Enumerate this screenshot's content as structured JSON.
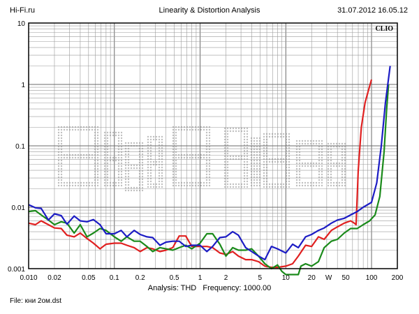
{
  "header": {
    "site": "Hi-Fi.ru",
    "title": "Linearity & Distortion Analysis",
    "timestamp": "31.07.2012 16.05.12"
  },
  "footer": {
    "analysis_label": "Analysis: THD",
    "frequency_label": "Frequency: 1000.00",
    "file": "File: кни 2ом.dst"
  },
  "brand": "CLIO",
  "chart_data": {
    "type": "line",
    "xscale": "log",
    "yscale": "log",
    "xlim": [
      0.01,
      200
    ],
    "ylim": [
      0.001,
      10
    ],
    "y_ticks": [
      {
        "value": 10,
        "label": "10"
      },
      {
        "value": 1,
        "label": "1"
      },
      {
        "value": 0.1,
        "label": "0.1"
      },
      {
        "value": 0.01,
        "label": "0.01"
      },
      {
        "value": 0.001,
        "label": "0.001"
      }
    ],
    "x_ticks": [
      {
        "value": 0.01,
        "label": "0.010"
      },
      {
        "value": 0.02,
        "label": "0.02"
      },
      {
        "value": 0.05,
        "label": "0.05"
      },
      {
        "value": 0.1,
        "label": "0.1"
      },
      {
        "value": 0.2,
        "label": "0.2"
      },
      {
        "value": 0.5,
        "label": "0.5"
      },
      {
        "value": 1,
        "label": "1"
      },
      {
        "value": 2,
        "label": "2"
      },
      {
        "value": 5,
        "label": "5"
      },
      {
        "value": 10,
        "label": "10"
      },
      {
        "value": 20,
        "label": "20"
      },
      {
        "value": 31.6,
        "label": "W"
      },
      {
        "value": 50,
        "label": "50"
      },
      {
        "value": 100,
        "label": "100"
      },
      {
        "value": 200,
        "label": "200"
      }
    ],
    "grid": true,
    "series": [
      {
        "color": "#e02020",
        "points": [
          [
            0.01,
            0.0055
          ],
          [
            0.012,
            0.0052
          ],
          [
            0.014,
            0.006
          ],
          [
            0.017,
            0.0052
          ],
          [
            0.02,
            0.0046
          ],
          [
            0.024,
            0.0045
          ],
          [
            0.028,
            0.0035
          ],
          [
            0.034,
            0.0033
          ],
          [
            0.04,
            0.0038
          ],
          [
            0.048,
            0.0031
          ],
          [
            0.057,
            0.0026
          ],
          [
            0.068,
            0.0021
          ],
          [
            0.08,
            0.0025
          ],
          [
            0.1,
            0.0026
          ],
          [
            0.12,
            0.0026
          ],
          [
            0.14,
            0.0024
          ],
          [
            0.17,
            0.0022
          ],
          [
            0.2,
            0.0019
          ],
          [
            0.24,
            0.0022
          ],
          [
            0.28,
            0.0021
          ],
          [
            0.34,
            0.0019
          ],
          [
            0.4,
            0.002
          ],
          [
            0.48,
            0.0022
          ],
          [
            0.57,
            0.0034
          ],
          [
            0.68,
            0.0034
          ],
          [
            0.8,
            0.0023
          ],
          [
            1.0,
            0.0023
          ],
          [
            1.2,
            0.0023
          ],
          [
            1.4,
            0.0022
          ],
          [
            1.7,
            0.0018
          ],
          [
            2.0,
            0.0017
          ],
          [
            2.4,
            0.0019
          ],
          [
            2.8,
            0.0016
          ],
          [
            3.4,
            0.0014
          ],
          [
            4.0,
            0.0014
          ],
          [
            4.8,
            0.0013
          ],
          [
            5.7,
            0.0011
          ],
          [
            6.8,
            0.00105
          ],
          [
            8.0,
            0.00105
          ],
          [
            10,
            0.0011
          ],
          [
            12,
            0.0012
          ],
          [
            14,
            0.0016
          ],
          [
            17,
            0.0024
          ],
          [
            20,
            0.0023
          ],
          [
            24,
            0.0033
          ],
          [
            28,
            0.003
          ],
          [
            34,
            0.0042
          ],
          [
            40,
            0.0048
          ],
          [
            48,
            0.0055
          ],
          [
            57,
            0.006
          ],
          [
            63,
            0.0055
          ],
          [
            66,
            0.0052
          ],
          [
            70,
            0.04
          ],
          [
            76,
            0.2
          ],
          [
            84,
            0.5
          ],
          [
            92,
            0.8
          ],
          [
            100,
            1.2
          ]
        ]
      },
      {
        "color": "#1a8a1a",
        "points": [
          [
            0.01,
            0.0085
          ],
          [
            0.012,
            0.0088
          ],
          [
            0.014,
            0.0075
          ],
          [
            0.017,
            0.0062
          ],
          [
            0.02,
            0.0052
          ],
          [
            0.024,
            0.0058
          ],
          [
            0.028,
            0.0055
          ],
          [
            0.034,
            0.0038
          ],
          [
            0.04,
            0.0052
          ],
          [
            0.048,
            0.0033
          ],
          [
            0.057,
            0.0038
          ],
          [
            0.068,
            0.0045
          ],
          [
            0.08,
            0.0042
          ],
          [
            0.1,
            0.0033
          ],
          [
            0.12,
            0.0028
          ],
          [
            0.14,
            0.0033
          ],
          [
            0.17,
            0.0028
          ],
          [
            0.2,
            0.0028
          ],
          [
            0.24,
            0.0023
          ],
          [
            0.28,
            0.0019
          ],
          [
            0.34,
            0.0022
          ],
          [
            0.4,
            0.0021
          ],
          [
            0.48,
            0.002
          ],
          [
            0.57,
            0.0022
          ],
          [
            0.68,
            0.0024
          ],
          [
            0.8,
            0.0021
          ],
          [
            1.0,
            0.0026
          ],
          [
            1.2,
            0.0037
          ],
          [
            1.4,
            0.0037
          ],
          [
            1.7,
            0.0025
          ],
          [
            2.0,
            0.0016
          ],
          [
            2.4,
            0.0022
          ],
          [
            2.8,
            0.002
          ],
          [
            3.4,
            0.002
          ],
          [
            4.0,
            0.0021
          ],
          [
            4.8,
            0.0016
          ],
          [
            5.7,
            0.0012
          ],
          [
            6.8,
            0.001
          ],
          [
            8.0,
            0.00115
          ],
          [
            9.0,
            0.0009
          ],
          [
            10,
            0.0008
          ],
          [
            14,
            0.0008
          ],
          [
            15,
            0.0011
          ],
          [
            17,
            0.0012
          ],
          [
            20,
            0.0011
          ],
          [
            24,
            0.0013
          ],
          [
            28,
            0.0022
          ],
          [
            34,
            0.0028
          ],
          [
            40,
            0.003
          ],
          [
            48,
            0.0038
          ],
          [
            57,
            0.0045
          ],
          [
            68,
            0.0045
          ],
          [
            80,
            0.0052
          ],
          [
            95,
            0.006
          ],
          [
            110,
            0.0075
          ],
          [
            125,
            0.015
          ],
          [
            140,
            0.08
          ],
          [
            150,
            0.4
          ],
          [
            158,
            1.0
          ]
        ]
      },
      {
        "color": "#1c1cc4",
        "points": [
          [
            0.01,
            0.011
          ],
          [
            0.012,
            0.0098
          ],
          [
            0.014,
            0.0096
          ],
          [
            0.017,
            0.0062
          ],
          [
            0.02,
            0.0078
          ],
          [
            0.024,
            0.0073
          ],
          [
            0.028,
            0.0053
          ],
          [
            0.034,
            0.0072
          ],
          [
            0.04,
            0.006
          ],
          [
            0.048,
            0.0058
          ],
          [
            0.057,
            0.0063
          ],
          [
            0.068,
            0.0052
          ],
          [
            0.08,
            0.0037
          ],
          [
            0.1,
            0.0037
          ],
          [
            0.12,
            0.0042
          ],
          [
            0.14,
            0.0033
          ],
          [
            0.17,
            0.0042
          ],
          [
            0.2,
            0.0036
          ],
          [
            0.24,
            0.0033
          ],
          [
            0.28,
            0.0032
          ],
          [
            0.34,
            0.0024
          ],
          [
            0.4,
            0.0027
          ],
          [
            0.48,
            0.0028
          ],
          [
            0.57,
            0.0028
          ],
          [
            0.68,
            0.0023
          ],
          [
            0.8,
            0.0024
          ],
          [
            1.0,
            0.0024
          ],
          [
            1.2,
            0.0019
          ],
          [
            1.4,
            0.0023
          ],
          [
            1.7,
            0.0032
          ],
          [
            2.0,
            0.0033
          ],
          [
            2.4,
            0.004
          ],
          [
            2.8,
            0.0035
          ],
          [
            3.4,
            0.0022
          ],
          [
            4.0,
            0.0019
          ],
          [
            4.8,
            0.0016
          ],
          [
            5.7,
            0.0014
          ],
          [
            6.8,
            0.0023
          ],
          [
            8.0,
            0.0021
          ],
          [
            10,
            0.0018
          ],
          [
            12,
            0.0025
          ],
          [
            14,
            0.0022
          ],
          [
            17,
            0.0033
          ],
          [
            20,
            0.0036
          ],
          [
            24,
            0.0042
          ],
          [
            28,
            0.0046
          ],
          [
            34,
            0.0055
          ],
          [
            40,
            0.0062
          ],
          [
            48,
            0.0066
          ],
          [
            57,
            0.0075
          ],
          [
            68,
            0.0085
          ],
          [
            80,
            0.01
          ],
          [
            100,
            0.012
          ],
          [
            115,
            0.025
          ],
          [
            130,
            0.1
          ],
          [
            145,
            0.5
          ],
          [
            165,
            2.0
          ]
        ]
      }
    ]
  }
}
